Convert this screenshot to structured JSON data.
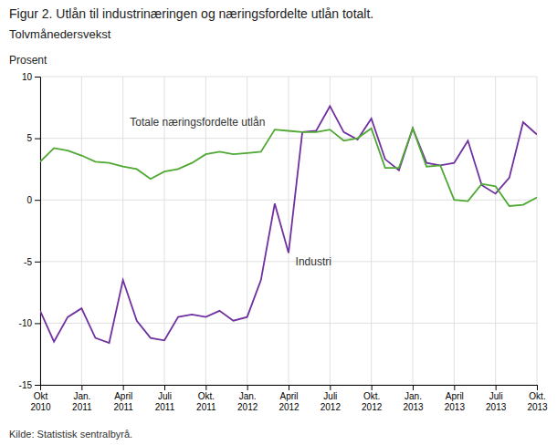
{
  "chart_data": {
    "type": "line",
    "title": "Figur 2. Utlån til industrinæringen og næringsfordelte utlån totalt.",
    "subtitle": "Tolvmånedersvekst",
    "ylabel": "Prosent",
    "source": "Kilde: Statistisk sentralbyrå.",
    "categories": [
      "Okt\n2010",
      null,
      null,
      "Jan.\n2011",
      null,
      null,
      "April\n2011",
      null,
      null,
      "Juli\n2011",
      null,
      null,
      "Okt.\n2011",
      null,
      null,
      "Jan.\n2012",
      null,
      null,
      "April\n2012",
      null,
      null,
      "Juli\n2012",
      null,
      null,
      "Okt.\n2012",
      null,
      null,
      "Jan.\n2013",
      null,
      null,
      "April\n2013",
      null,
      null,
      "Juli\n2013",
      null,
      null,
      "Okt.\n2013"
    ],
    "series": [
      {
        "color": "#7030a0",
        "values": [
          -9.0,
          -11.5,
          -9.5,
          -8.8,
          -11.2,
          -11.6,
          -6.5,
          -9.8,
          -11.2,
          -11.4,
          -9.5,
          -9.3,
          -9.5,
          -9.0,
          -9.8,
          -9.5,
          -6.5,
          -0.3,
          -4.3,
          5.5,
          5.6,
          7.6,
          5.5,
          4.9,
          6.6,
          3.3,
          2.4,
          5.8,
          3.0,
          2.8,
          3.0,
          4.8,
          1.2,
          0.5,
          1.8,
          6.3,
          5.3
        ]
      },
      {
        "color": "#4ea832",
        "values": [
          3.1,
          4.2,
          4.0,
          3.6,
          3.1,
          3.0,
          2.7,
          2.5,
          1.7,
          2.3,
          2.5,
          3.0,
          3.7,
          3.9,
          3.7,
          3.8,
          3.9,
          5.7,
          5.6,
          5.5,
          5.5,
          5.7,
          4.8,
          5.0,
          5.8,
          2.6,
          2.6,
          5.8,
          2.7,
          2.8,
          -0.0,
          -0.1,
          1.3,
          1.1,
          -0.5,
          -0.4,
          0.2
        ]
      }
    ],
    "annotations": [
      {
        "text": "Totale næringsfordelte utlån",
        "x": 6.5,
        "y": 5.8
      },
      {
        "text": "Industri",
        "x": 18.5,
        "y": -4.5
      }
    ],
    "ylim": [
      -15,
      10
    ],
    "yticks": [
      -15,
      -10,
      -5,
      0,
      5,
      10
    ],
    "grid": true
  }
}
